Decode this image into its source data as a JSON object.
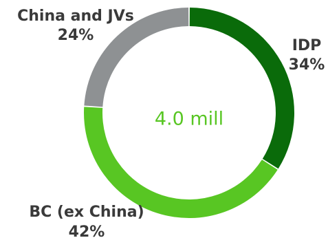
{
  "chart_data": {
    "type": "pie",
    "variant": "donut",
    "center_text": "4.0 mill",
    "slices": [
      {
        "label": "IDP",
        "value": 34,
        "value_text": "34%",
        "color": "#0a6b0a"
      },
      {
        "label": "BC (ex China)",
        "value": 42,
        "value_text": "42%",
        "color": "#58c623"
      },
      {
        "label": "China and JVs",
        "value": 24,
        "value_text": "24%",
        "color": "#8e9193"
      }
    ]
  },
  "colors": {
    "center_text": "#58c623",
    "label_text": "#3a3a3a",
    "background": "#ffffff"
  }
}
